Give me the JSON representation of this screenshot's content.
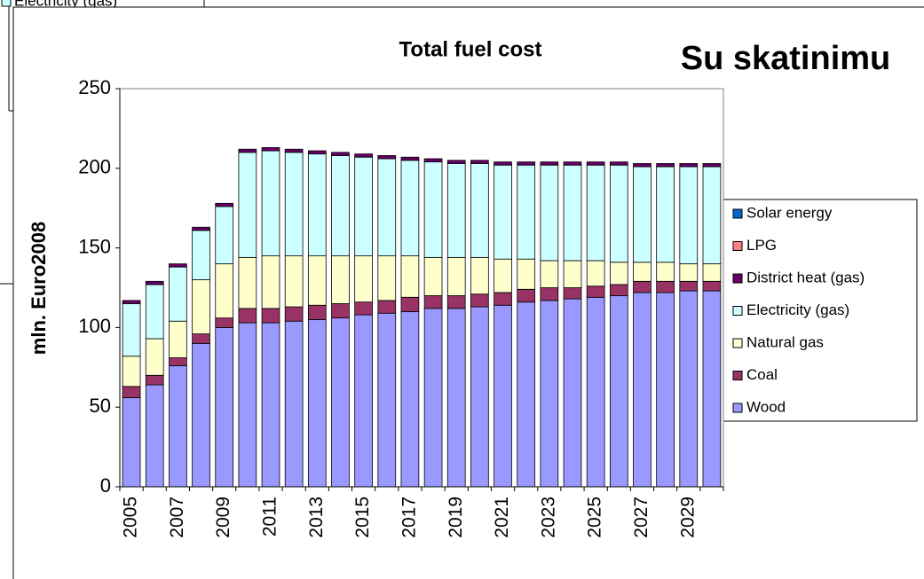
{
  "background_legend": {
    "label": "Electricity (gas)",
    "color": "#ccffff"
  },
  "chart_data": {
    "type": "stacked_bar",
    "title": "Total fuel cost",
    "annotation": "Su skatinimu",
    "annotation_color": "#c0504d",
    "y_label": "mln. Euro2008",
    "categories": [
      "2005",
      null,
      "2007",
      null,
      "2009",
      null,
      "2011",
      null,
      "2013",
      null,
      "2015",
      null,
      "2017",
      null,
      "2019",
      null,
      "2021",
      null,
      "2023",
      null,
      "2025",
      null,
      "2027",
      null,
      "2029",
      null
    ],
    "series": [
      {
        "name": "Wood",
        "color": "#9999ff",
        "values": [
          56,
          64,
          76,
          90,
          100,
          103,
          103,
          104,
          105,
          106,
          108,
          109,
          110,
          112,
          112,
          113,
          114,
          116,
          117,
          118,
          119,
          120,
          122,
          122,
          123,
          123
        ]
      },
      {
        "name": "Coal",
        "color": "#993366",
        "values": [
          7,
          6,
          5,
          6,
          6,
          9,
          9,
          9,
          9,
          9,
          8,
          8,
          9,
          8,
          8,
          8,
          8,
          8,
          8,
          7,
          7,
          7,
          7,
          7,
          6,
          6
        ]
      },
      {
        "name": "Natural gas",
        "color": "#ffffcc",
        "values": [
          19,
          23,
          23,
          34,
          34,
          32,
          33,
          32,
          31,
          30,
          29,
          28,
          26,
          24,
          24,
          23,
          21,
          19,
          17,
          17,
          16,
          14,
          12,
          12,
          11,
          11
        ]
      },
      {
        "name": "Electricity (gas)",
        "color": "#ccffff",
        "values": [
          33,
          34,
          34,
          31,
          36,
          66,
          66,
          65,
          64,
          63,
          62,
          61,
          60,
          60,
          59,
          59,
          59,
          59,
          60,
          60,
          60,
          61,
          60,
          60,
          61,
          61
        ]
      },
      {
        "name": "District heat (gas)",
        "color": "#660066",
        "values": [
          2,
          2,
          2,
          2,
          2,
          2,
          2,
          2,
          2,
          2,
          2,
          2,
          2,
          2,
          2,
          2,
          2,
          2,
          2,
          2,
          2,
          2,
          2,
          2,
          2,
          2
        ]
      },
      {
        "name": "LPG",
        "color": "#ff8080",
        "values": [
          0,
          0,
          0,
          0,
          0,
          0,
          0,
          0,
          0,
          0,
          0,
          0,
          0,
          0,
          0,
          0,
          0,
          0,
          0,
          0,
          0,
          0,
          0,
          0,
          0,
          0
        ]
      },
      {
        "name": "Solar energy",
        "color": "#0066cc",
        "values": [
          0,
          0,
          0,
          0,
          0,
          0,
          0,
          0,
          0,
          0,
          0,
          0,
          0,
          0,
          0,
          0,
          0,
          0,
          0,
          0,
          0,
          0,
          0,
          0,
          0,
          0
        ]
      }
    ],
    "ylim": [
      0,
      250
    ],
    "yticks": [
      0,
      50,
      100,
      150,
      200,
      250
    ],
    "grid": false,
    "legend": "right"
  }
}
